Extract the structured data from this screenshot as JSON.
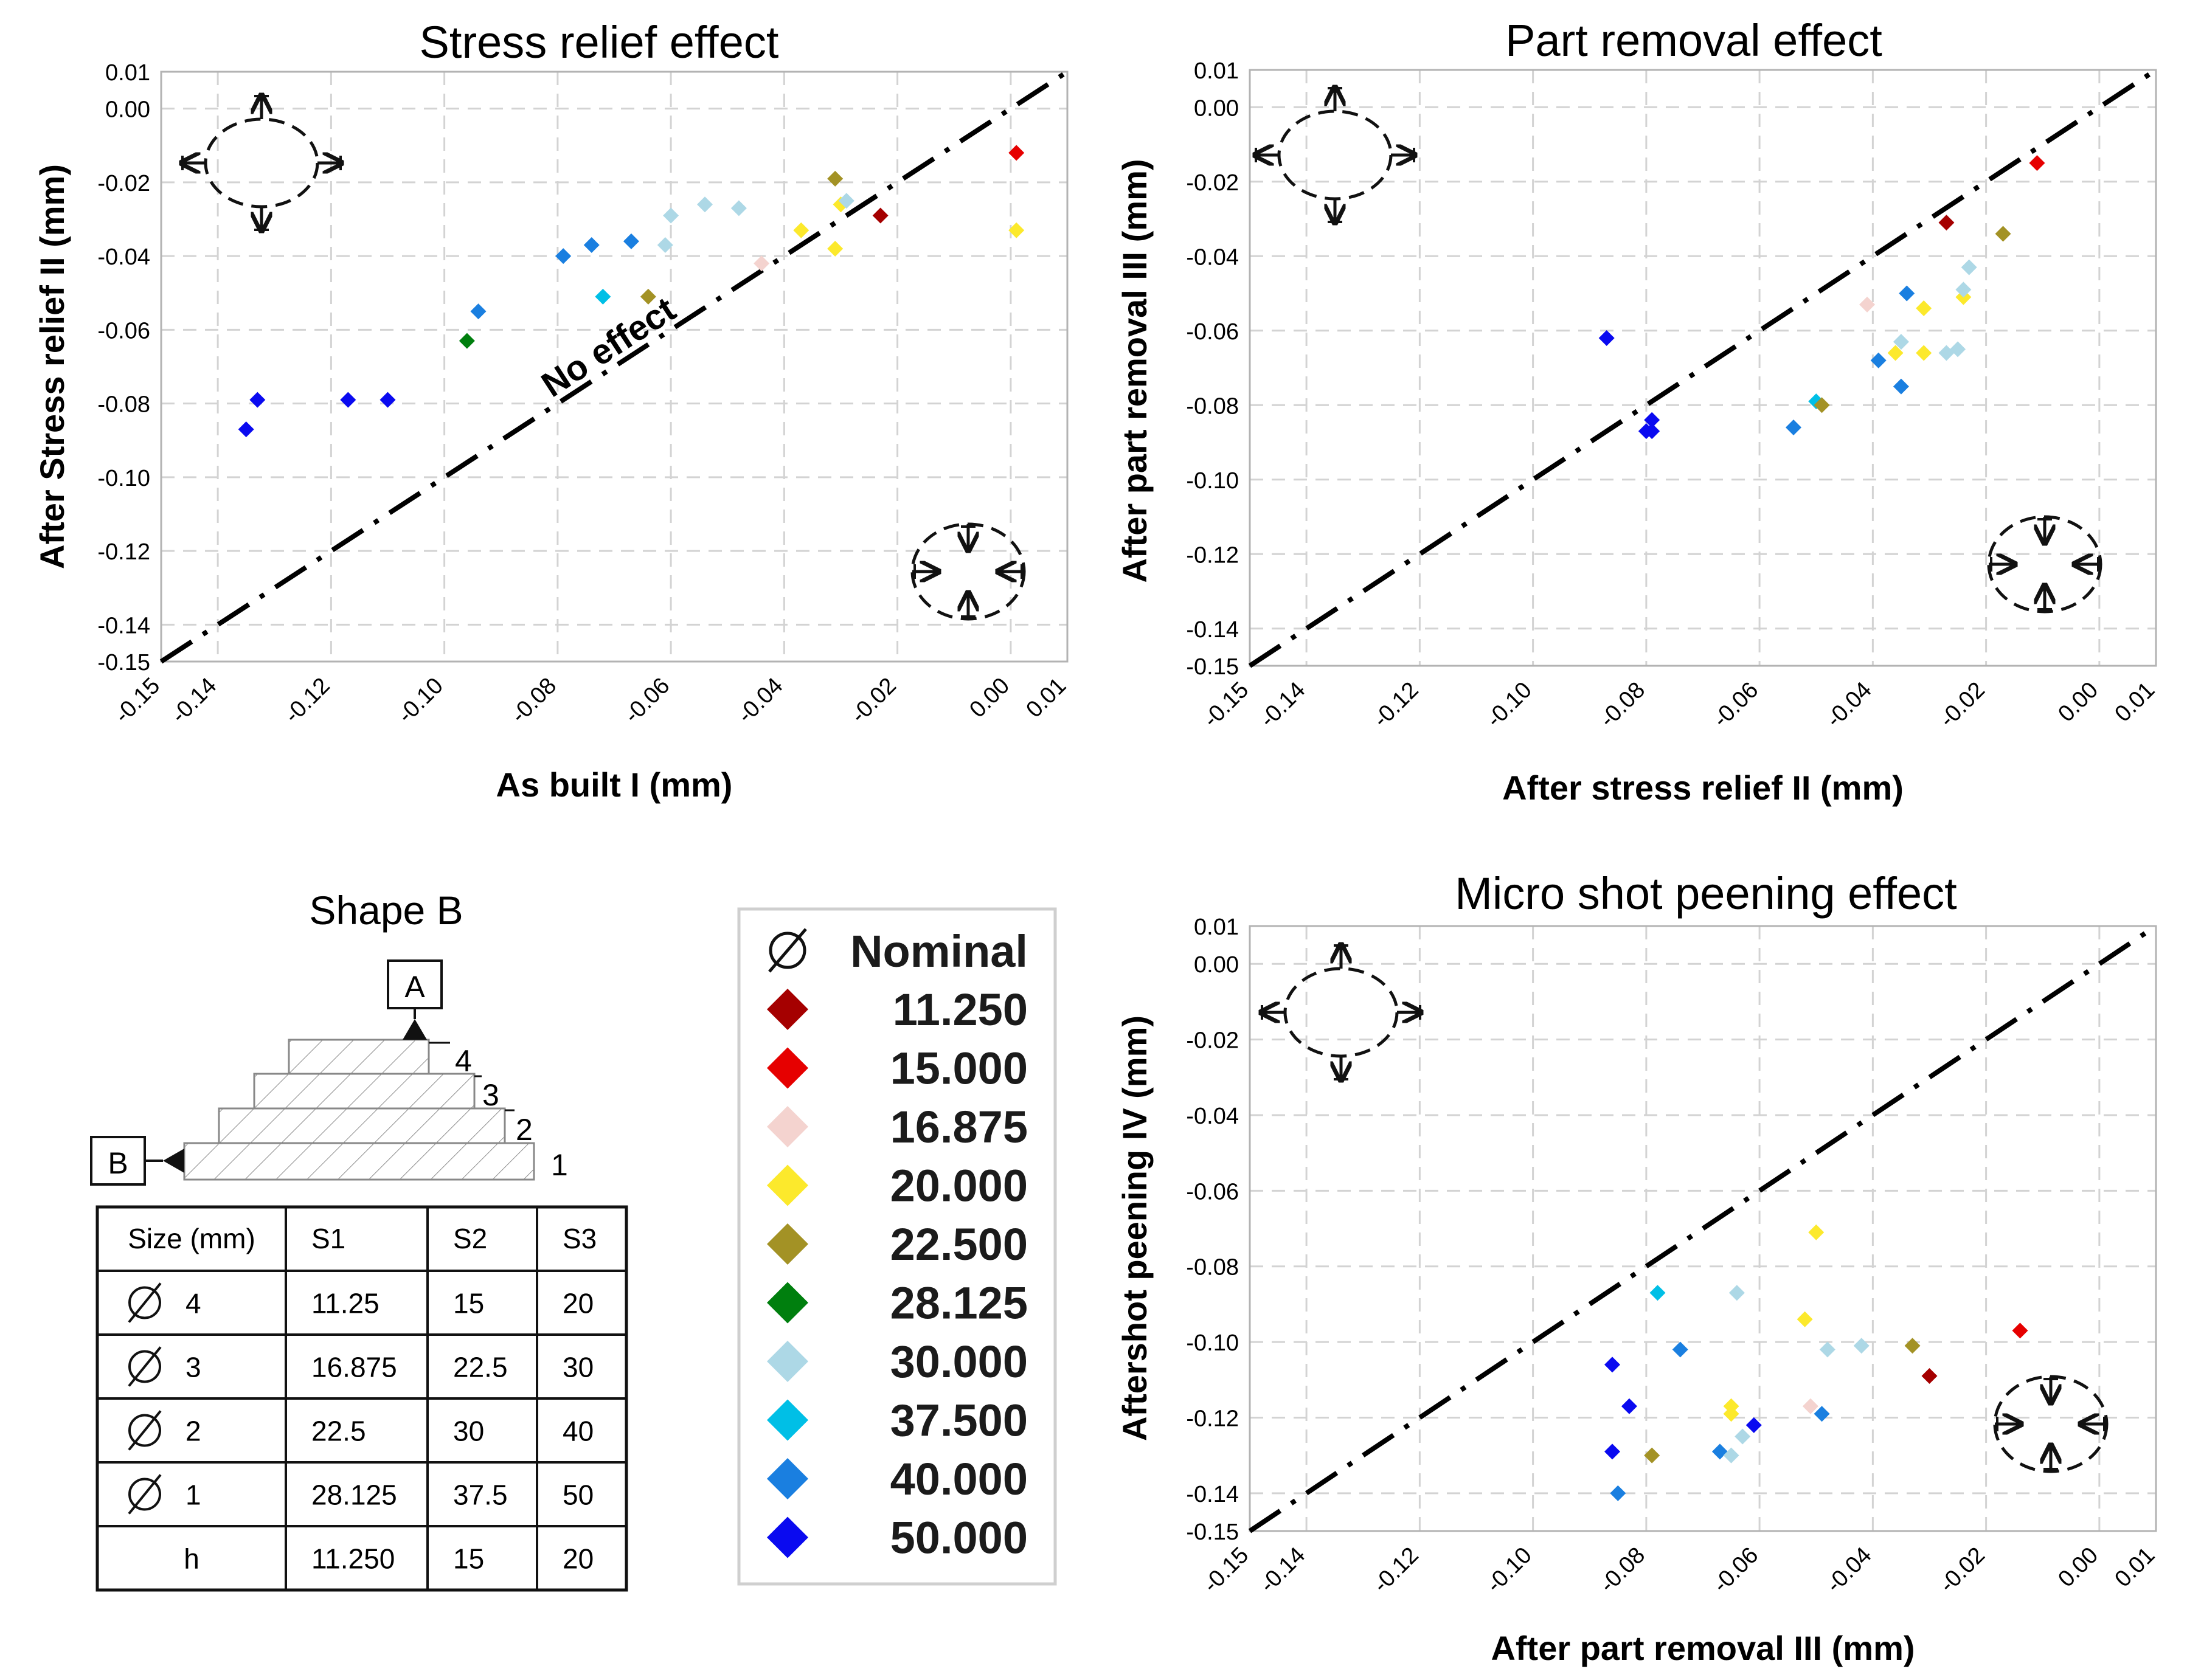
{
  "chart_data": [
    {
      "type": "scatter",
      "title": "Stress relief effect",
      "xlabel": "As built I (mm)",
      "ylabel": "After Stress relief II (mm)",
      "xlim": [
        -0.15,
        0.01
      ],
      "ylim": [
        -0.15,
        0.01
      ],
      "xticks": [
        "-0.15",
        "-0.14",
        "-0.12",
        "-0.10",
        "-0.08",
        "-0.06",
        "-0.04",
        "-0.02",
        "0.00",
        "0.01"
      ],
      "yticks": [
        "0.01",
        "0.00",
        "-0.02",
        "-0.04",
        "-0.06",
        "-0.08",
        "-0.10",
        "-0.12",
        "-0.14",
        "-0.15"
      ],
      "reference_line": "y = x",
      "reference_label": "No effect",
      "points": [
        {
          "x": -0.135,
          "y": -0.087,
          "g": "50.000"
        },
        {
          "x": -0.133,
          "y": -0.079,
          "g": "50.000"
        },
        {
          "x": -0.117,
          "y": -0.079,
          "g": "50.000"
        },
        {
          "x": -0.11,
          "y": -0.079,
          "g": "50.000"
        },
        {
          "x": -0.096,
          "y": -0.063,
          "g": "28.125"
        },
        {
          "x": -0.094,
          "y": -0.055,
          "g": "40.000"
        },
        {
          "x": -0.079,
          "y": -0.04,
          "g": "40.000"
        },
        {
          "x": -0.074,
          "y": -0.037,
          "g": "40.000"
        },
        {
          "x": -0.072,
          "y": -0.051,
          "g": "37.500"
        },
        {
          "x": -0.067,
          "y": -0.036,
          "g": "40.000"
        },
        {
          "x": -0.064,
          "y": -0.051,
          "g": "22.500"
        },
        {
          "x": -0.061,
          "y": -0.037,
          "g": "30.000"
        },
        {
          "x": -0.06,
          "y": -0.029,
          "g": "30.000"
        },
        {
          "x": -0.054,
          "y": -0.026,
          "g": "30.000"
        },
        {
          "x": -0.048,
          "y": -0.027,
          "g": "30.000"
        },
        {
          "x": -0.044,
          "y": -0.042,
          "g": "16.875"
        },
        {
          "x": -0.037,
          "y": -0.033,
          "g": "20.000"
        },
        {
          "x": -0.031,
          "y": -0.038,
          "g": "20.000"
        },
        {
          "x": -0.031,
          "y": -0.019,
          "g": "22.500"
        },
        {
          "x": -0.03,
          "y": -0.026,
          "g": "20.000"
        },
        {
          "x": -0.029,
          "y": -0.025,
          "g": "30.000"
        },
        {
          "x": -0.023,
          "y": -0.029,
          "g": "11.250"
        },
        {
          "x": 0.001,
          "y": -0.033,
          "g": "20.000"
        },
        {
          "x": 0.001,
          "y": -0.012,
          "g": "15.000"
        }
      ]
    },
    {
      "type": "scatter",
      "title": "Part removal effect",
      "xlabel": "After stress relief II (mm)",
      "ylabel": "After part removal III (mm)",
      "xlim": [
        -0.15,
        0.01
      ],
      "ylim": [
        -0.15,
        0.01
      ],
      "xticks": [
        "-0.15",
        "-0.14",
        "-0.12",
        "-0.10",
        "-0.08",
        "-0.06",
        "-0.04",
        "-0.02",
        "0.00",
        "0.01"
      ],
      "yticks": [
        "0.01",
        "0.00",
        "-0.02",
        "-0.04",
        "-0.06",
        "-0.08",
        "-0.10",
        "-0.12",
        "-0.14",
        "-0.15"
      ],
      "reference_line": "y = x",
      "points": [
        {
          "x": -0.087,
          "y": -0.062,
          "g": "50.000"
        },
        {
          "x": -0.079,
          "y": -0.084,
          "g": "50.000"
        },
        {
          "x": -0.08,
          "y": -0.087,
          "g": "50.000"
        },
        {
          "x": -0.079,
          "y": -0.087,
          "g": "50.000"
        },
        {
          "x": -0.054,
          "y": -0.086,
          "g": "40.000"
        },
        {
          "x": -0.05,
          "y": -0.079,
          "g": "37.500"
        },
        {
          "x": -0.049,
          "y": -0.08,
          "g": "22.500"
        },
        {
          "x": -0.041,
          "y": -0.053,
          "g": "16.875"
        },
        {
          "x": -0.039,
          "y": -0.068,
          "g": "40.000"
        },
        {
          "x": -0.036,
          "y": -0.066,
          "g": "20.000"
        },
        {
          "x": -0.035,
          "y": -0.063,
          "g": "30.000"
        },
        {
          "x": -0.035,
          "y": -0.075,
          "g": "40.000"
        },
        {
          "x": -0.034,
          "y": -0.05,
          "g": "40.000"
        },
        {
          "x": -0.031,
          "y": -0.066,
          "g": "20.000"
        },
        {
          "x": -0.031,
          "y": -0.054,
          "g": "20.000"
        },
        {
          "x": -0.027,
          "y": -0.031,
          "g": "11.250"
        },
        {
          "x": -0.027,
          "y": -0.066,
          "g": "30.000"
        },
        {
          "x": -0.025,
          "y": -0.065,
          "g": "30.000"
        },
        {
          "x": -0.024,
          "y": -0.051,
          "g": "20.000"
        },
        {
          "x": -0.024,
          "y": -0.049,
          "g": "30.000"
        },
        {
          "x": -0.023,
          "y": -0.043,
          "g": "30.000"
        },
        {
          "x": -0.017,
          "y": -0.034,
          "g": "22.500"
        },
        {
          "x": -0.011,
          "y": -0.015,
          "g": "15.000"
        }
      ]
    },
    {
      "type": "scatter",
      "title": "Micro shot peening effect",
      "xlabel": "After part removal III (mm)",
      "ylabel": "Aftershot peening IV (mm)",
      "xlim": [
        -0.15,
        0.01
      ],
      "ylim": [
        -0.15,
        0.01
      ],
      "xticks": [
        "-0.15",
        "-0.14",
        "-0.12",
        "-0.10",
        "-0.08",
        "-0.06",
        "-0.04",
        "-0.02",
        "0.00",
        "0.01"
      ],
      "yticks": [
        "0.01",
        "0.00",
        "-0.02",
        "-0.04",
        "-0.06",
        "-0.08",
        "-0.10",
        "-0.12",
        "-0.14",
        "-0.15"
      ],
      "reference_line": "y = x",
      "points": [
        {
          "x": -0.086,
          "y": -0.106,
          "g": "50.000"
        },
        {
          "x": -0.086,
          "y": -0.129,
          "g": "50.000"
        },
        {
          "x": -0.085,
          "y": -0.14,
          "g": "40.000"
        },
        {
          "x": -0.083,
          "y": -0.117,
          "g": "50.000"
        },
        {
          "x": -0.079,
          "y": -0.13,
          "g": "22.500"
        },
        {
          "x": -0.078,
          "y": -0.087,
          "g": "37.500"
        },
        {
          "x": -0.074,
          "y": -0.102,
          "g": "40.000"
        },
        {
          "x": -0.067,
          "y": -0.129,
          "g": "40.000"
        },
        {
          "x": -0.065,
          "y": -0.117,
          "g": "20.000"
        },
        {
          "x": -0.065,
          "y": -0.119,
          "g": "20.000"
        },
        {
          "x": -0.065,
          "y": -0.13,
          "g": "30.000"
        },
        {
          "x": -0.064,
          "y": -0.087,
          "g": "30.000"
        },
        {
          "x": -0.063,
          "y": -0.125,
          "g": "30.000"
        },
        {
          "x": -0.061,
          "y": -0.122,
          "g": "50.000"
        },
        {
          "x": -0.052,
          "y": -0.094,
          "g": "20.000"
        },
        {
          "x": -0.051,
          "y": -0.117,
          "g": "16.875"
        },
        {
          "x": -0.05,
          "y": -0.071,
          "g": "20.000"
        },
        {
          "x": -0.049,
          "y": -0.119,
          "g": "40.000"
        },
        {
          "x": -0.048,
          "y": -0.102,
          "g": "30.000"
        },
        {
          "x": -0.042,
          "y": -0.101,
          "g": "30.000"
        },
        {
          "x": -0.033,
          "y": -0.101,
          "g": "22.500"
        },
        {
          "x": -0.03,
          "y": -0.109,
          "g": "11.250"
        },
        {
          "x": -0.014,
          "y": -0.097,
          "g": "15.000"
        }
      ]
    }
  ],
  "legend": {
    "header": "Nominal",
    "items": [
      {
        "label": "11.250",
        "color": "#a50000"
      },
      {
        "label": "15.000",
        "color": "#e60000"
      },
      {
        "label": "16.875",
        "color": "#f4d3cf"
      },
      {
        "label": "20.000",
        "color": "#fce92c"
      },
      {
        "label": "22.500",
        "color": "#a39225"
      },
      {
        "label": "28.125",
        "color": "#007f0e"
      },
      {
        "label": "30.000",
        "color": "#add8e6"
      },
      {
        "label": "37.500",
        "color": "#00bfe6"
      },
      {
        "label": "40.000",
        "color": "#1a7fe0"
      },
      {
        "label": "50.000",
        "color": "#0a0af0"
      }
    ]
  },
  "shape": {
    "title": "Shape  B",
    "datum_a": "A",
    "datum_b": "B",
    "step_labels": [
      "4",
      "3",
      "2",
      "1"
    ]
  },
  "size_table": {
    "headers": [
      "Size (mm)",
      "S1",
      "S2",
      "S3"
    ],
    "rows": [
      {
        "label": "4",
        "diam": true,
        "values": [
          "11.25",
          "15",
          "20"
        ]
      },
      {
        "label": "3",
        "diam": true,
        "values": [
          "16.875",
          "22.5",
          "30"
        ]
      },
      {
        "label": "2",
        "diam": true,
        "values": [
          "22.5",
          "30",
          "40"
        ]
      },
      {
        "label": "1",
        "diam": true,
        "values": [
          "28.125",
          "37.5",
          "50"
        ]
      },
      {
        "label": "h",
        "diam": false,
        "values": [
          "11.250",
          "15",
          "20"
        ]
      }
    ]
  },
  "colors": {
    "grid": "#d3d3d3",
    "axis": "#b3b3b3",
    "reference": "#000000"
  }
}
